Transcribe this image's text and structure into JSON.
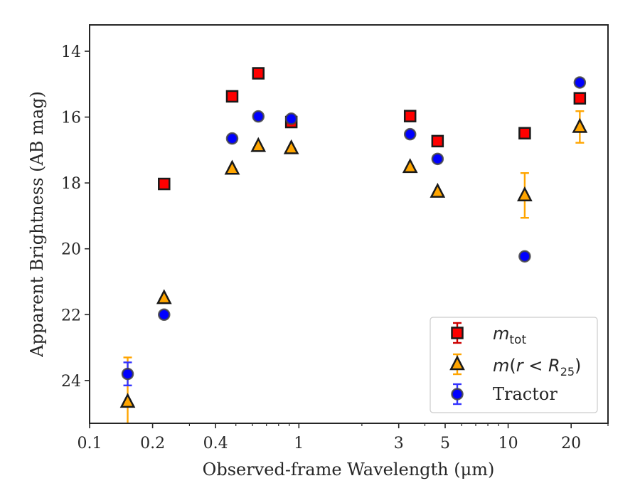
{
  "chart_data": {
    "type": "scatter",
    "xlabel": "Observed-frame Wavelength (μm)",
    "ylabel": "Apparent Brightness (AB mag)",
    "xscale": "log",
    "xlim": [
      0.1,
      30
    ],
    "ylim": [
      25.3,
      13.2
    ],
    "y_inverted": true,
    "xticks": [
      {
        "value": 0.1,
        "label": "0.1"
      },
      {
        "value": 0.2,
        "label": "0.2"
      },
      {
        "value": 0.4,
        "label": "0.4"
      },
      {
        "value": 1,
        "label": "1"
      },
      {
        "value": 3,
        "label": "3"
      },
      {
        "value": 5,
        "label": "5"
      },
      {
        "value": 10,
        "label": "10"
      },
      {
        "value": 20,
        "label": "20"
      }
    ],
    "yticks": [
      {
        "value": 14,
        "label": "14"
      },
      {
        "value": 16,
        "label": "16"
      },
      {
        "value": 18,
        "label": "18"
      },
      {
        "value": 20,
        "label": "20"
      },
      {
        "value": 22,
        "label": "22"
      },
      {
        "value": 24,
        "label": "24"
      }
    ],
    "legend_position": "lower-right",
    "series": [
      {
        "key": "mtot",
        "legend_label": "m_tot",
        "marker": "square",
        "fill": "#ff0000",
        "errorbar_color": "#cc0000",
        "points": [
          {
            "x": 0.227,
            "y": 18.03
          },
          {
            "x": 0.48,
            "y": 15.37
          },
          {
            "x": 0.64,
            "y": 14.67
          },
          {
            "x": 0.92,
            "y": 16.15,
            "yerr": 0.15
          },
          {
            "x": 3.4,
            "y": 15.97
          },
          {
            "x": 4.6,
            "y": 16.73
          },
          {
            "x": 12.0,
            "y": 16.49
          },
          {
            "x": 22.0,
            "y": 15.43
          }
        ]
      },
      {
        "key": "mr25",
        "legend_label": "m(r < R25)",
        "marker": "triangle",
        "fill": "#ffa500",
        "errorbar_color": "#ffa500",
        "points": [
          {
            "x": 0.152,
            "y": 24.65,
            "yerr": 1.35
          },
          {
            "x": 0.227,
            "y": 21.5
          },
          {
            "x": 0.48,
            "y": 17.57
          },
          {
            "x": 0.64,
            "y": 16.88
          },
          {
            "x": 0.92,
            "y": 16.95
          },
          {
            "x": 3.4,
            "y": 17.52
          },
          {
            "x": 4.6,
            "y": 18.27
          },
          {
            "x": 12.0,
            "y": 18.38,
            "yerr": 0.68
          },
          {
            "x": 22.0,
            "y": 16.3,
            "yerr": 0.48
          }
        ]
      },
      {
        "key": "tractor",
        "legend_label": "Tractor",
        "marker": "circle",
        "fill": "#0000ff",
        "errorbar_color": "#3333ff",
        "points": [
          {
            "x": 0.152,
            "y": 23.8,
            "yerr": 0.35
          },
          {
            "x": 0.227,
            "y": 22.0
          },
          {
            "x": 0.48,
            "y": 16.65
          },
          {
            "x": 0.64,
            "y": 15.98
          },
          {
            "x": 0.92,
            "y": 16.05
          },
          {
            "x": 3.4,
            "y": 16.52
          },
          {
            "x": 4.6,
            "y": 17.27
          },
          {
            "x": 12.0,
            "y": 20.23
          },
          {
            "x": 22.0,
            "y": 14.95
          }
        ]
      }
    ]
  }
}
